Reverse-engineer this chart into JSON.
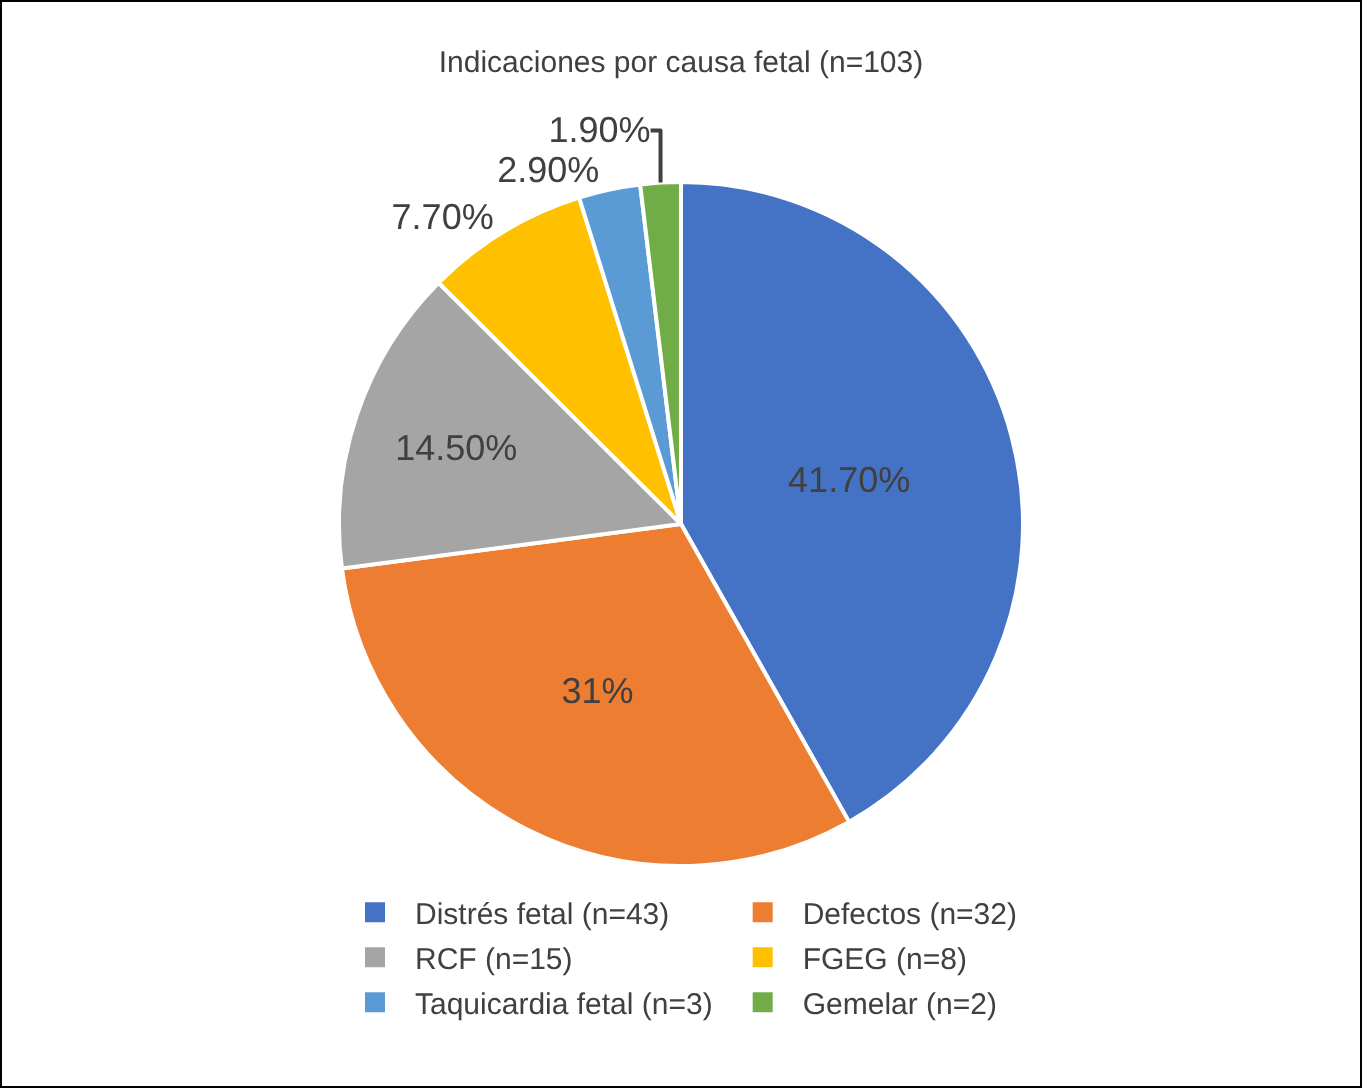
{
  "chart_data": {
    "type": "pie",
    "title": "Indicaciones por causa fetal (n=103)",
    "categories": [
      "Distrés fetal (n=43)",
      "Defectos (n=32)",
      "RCF (n=15)",
      "FGEG (n=8)",
      "Taquicardia fetal (n=3)",
      "Gemelar (n=2)"
    ],
    "values": [
      41.7,
      31,
      14.5,
      7.7,
      2.9,
      1.9
    ],
    "value_labels": [
      "41.70%",
      "31%",
      "14.50%",
      "7.70%",
      "2.90%",
      "1.90%"
    ],
    "colors": [
      "#4472c4",
      "#ed7d31",
      "#a5a5a5",
      "#ffc000",
      "#5b9bd5",
      "#70ad47"
    ],
    "legend": "bottom"
  }
}
